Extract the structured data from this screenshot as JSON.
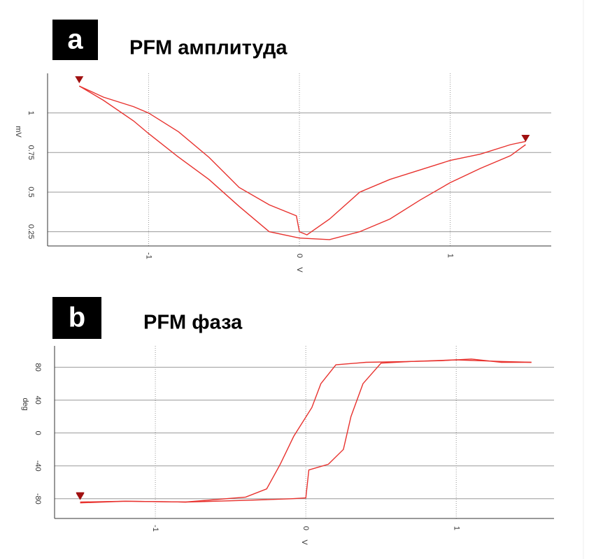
{
  "chart_data": [
    {
      "type": "line",
      "panel": "a",
      "title": "PFM амплитуда",
      "xlabel": "V",
      "ylabel": "mV",
      "xlim": [
        -1.67,
        1.67
      ],
      "xticks": [
        -1,
        0,
        1
      ],
      "ylim": [
        0.16,
        1.25
      ],
      "yticks": [
        0.25,
        0.5,
        0.75,
        1
      ],
      "grid": true,
      "series": [
        {
          "color": "#e8322e",
          "x": [
            -1.46,
            -1.3,
            -1.1,
            -1.0,
            -0.8,
            -0.6,
            -0.4,
            -0.2,
            -0.02,
            0,
            0.05,
            0.2,
            0.4,
            0.6,
            0.8,
            1.0,
            1.2,
            1.4,
            1.5
          ],
          "values": [
            1.17,
            1.1,
            1.04,
            1.0,
            0.88,
            0.72,
            0.53,
            0.42,
            0.35,
            0.25,
            0.23,
            0.33,
            0.5,
            0.58,
            0.64,
            0.7,
            0.74,
            0.8,
            0.82
          ]
        },
        {
          "color": "#e8322e",
          "x": [
            -1.46,
            -1.3,
            -1.1,
            -1.0,
            -0.8,
            -0.6,
            -0.4,
            -0.2,
            0,
            0.2,
            0.4,
            0.6,
            0.8,
            1.0,
            1.2,
            1.4,
            1.5
          ],
          "values": [
            1.17,
            1.08,
            0.95,
            0.87,
            0.72,
            0.58,
            0.41,
            0.25,
            0.21,
            0.2,
            0.25,
            0.33,
            0.45,
            0.56,
            0.65,
            0.73,
            0.8
          ]
        }
      ]
    },
    {
      "type": "line",
      "panel": "b",
      "title": "PFM фаза",
      "xlabel": "V",
      "ylabel": "deg",
      "xlim": [
        -1.67,
        1.65
      ],
      "xticks": [
        -1,
        0,
        1
      ],
      "ylim": [
        -104,
        106
      ],
      "yticks": [
        -80,
        -40,
        0,
        40,
        80
      ],
      "grid": true,
      "series": [
        {
          "color": "#e8322e",
          "x": [
            -1.5,
            -1.2,
            -0.8,
            -0.4,
            -0.1,
            0,
            0.02,
            0.15,
            0.25,
            0.3,
            0.38,
            0.5,
            0.7,
            0.9,
            1.1,
            1.3,
            1.5
          ],
          "values": [
            -84,
            -83,
            -84,
            -82,
            -80,
            -79,
            -45,
            -38,
            -20,
            20,
            60,
            85,
            87,
            88,
            90,
            86,
            86
          ]
        },
        {
          "color": "#e8322e",
          "x": [
            1.5,
            1.3,
            1.0,
            0.7,
            0.4,
            0.2,
            0.1,
            0.04,
            -0.08,
            -0.17,
            -0.26,
            -0.4,
            -0.8,
            -1.2,
            -1.5
          ],
          "values": [
            86,
            87,
            89,
            87,
            86,
            83,
            60,
            31,
            -4,
            -38,
            -68,
            -78,
            -84,
            -83,
            -85
          ]
        }
      ]
    }
  ]
}
